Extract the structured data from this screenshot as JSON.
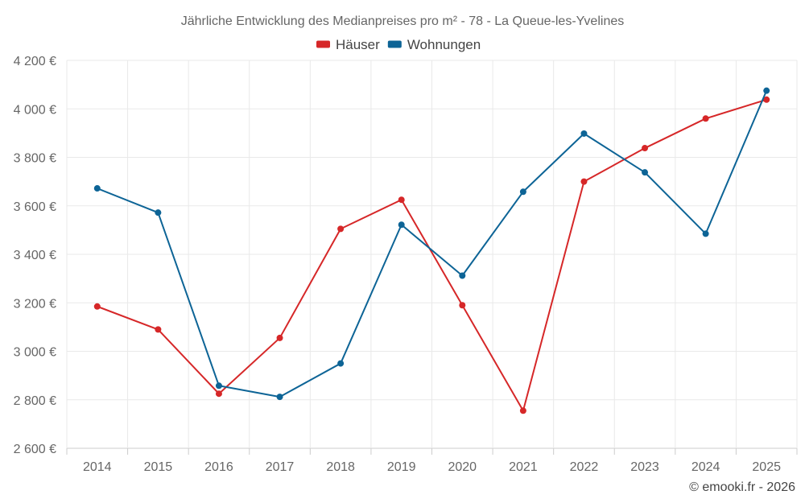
{
  "chart_data": {
    "type": "line",
    "title": "Jährliche Entwicklung des Medianpreises pro m² - 78 - La Queue-les-Yvelines",
    "x": [
      "2014",
      "2015",
      "2016",
      "2017",
      "2018",
      "2019",
      "2020",
      "2021",
      "2022",
      "2023",
      "2024",
      "2025"
    ],
    "series": [
      {
        "name": "Häuser",
        "color": "#d62728",
        "values": [
          3185,
          3090,
          2825,
          3055,
          3505,
          3625,
          3190,
          2755,
          3700,
          3838,
          3960,
          4038
        ]
      },
      {
        "name": "Wohnungen",
        "color": "#0d6496",
        "values": [
          3672,
          3572,
          2858,
          2812,
          2950,
          3522,
          3312,
          3658,
          3898,
          3738,
          3485,
          4075
        ]
      }
    ],
    "ylim": [
      2600,
      4200
    ],
    "yticks": [
      2600,
      2800,
      3000,
      3200,
      3400,
      3600,
      3800,
      4000,
      4200
    ],
    "ytick_labels": [
      "2 600 €",
      "2 800 €",
      "3 000 €",
      "3 200 €",
      "3 400 €",
      "3 600 €",
      "3 800 €",
      "4 000 €",
      "4 200 €"
    ],
    "xlabel": "",
    "ylabel": "",
    "grid": true,
    "legend_position": "top-center"
  },
  "credit": "© emooki.fr - 2026"
}
